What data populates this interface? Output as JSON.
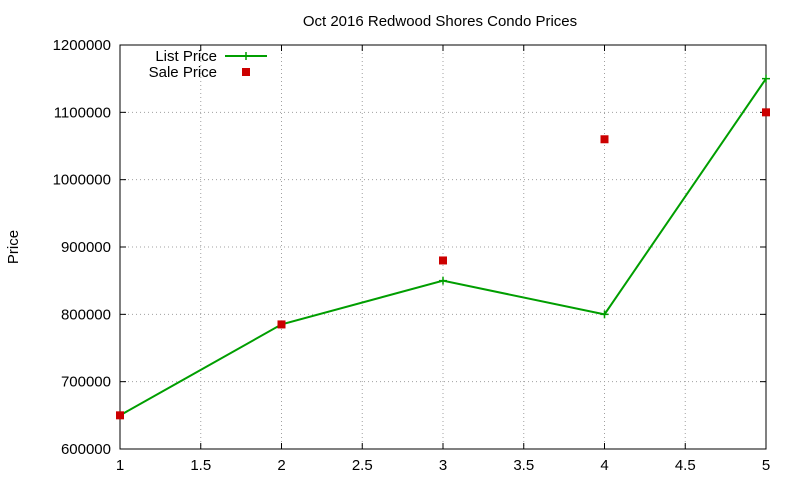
{
  "chart_data": {
    "type": "line",
    "title": "Oct 2016 Redwood Shores Condo Prices",
    "xlabel": "",
    "ylabel": "Price",
    "xlim": [
      1,
      5
    ],
    "ylim": [
      600000,
      1200000
    ],
    "x_ticks": [
      "1",
      "1.5",
      "2",
      "2.5",
      "3",
      "3.5",
      "4",
      "4.5",
      "5"
    ],
    "y_ticks": [
      "600000",
      "700000",
      "800000",
      "900000",
      "1000000",
      "1100000",
      "1200000"
    ],
    "grid": true,
    "legend_position": "top-left",
    "series": [
      {
        "name": "List Price",
        "style": "linespoints",
        "marker": "plus",
        "color": "#009e00",
        "x": [
          1,
          2,
          3,
          4,
          5
        ],
        "y": [
          650000,
          785000,
          850000,
          800000,
          1150000
        ]
      },
      {
        "name": "Sale Price",
        "style": "points",
        "marker": "square",
        "color": "#cc0000",
        "x": [
          1,
          2,
          3,
          4,
          5
        ],
        "y": [
          650000,
          785000,
          880000,
          1060000,
          1100000
        ]
      }
    ]
  }
}
